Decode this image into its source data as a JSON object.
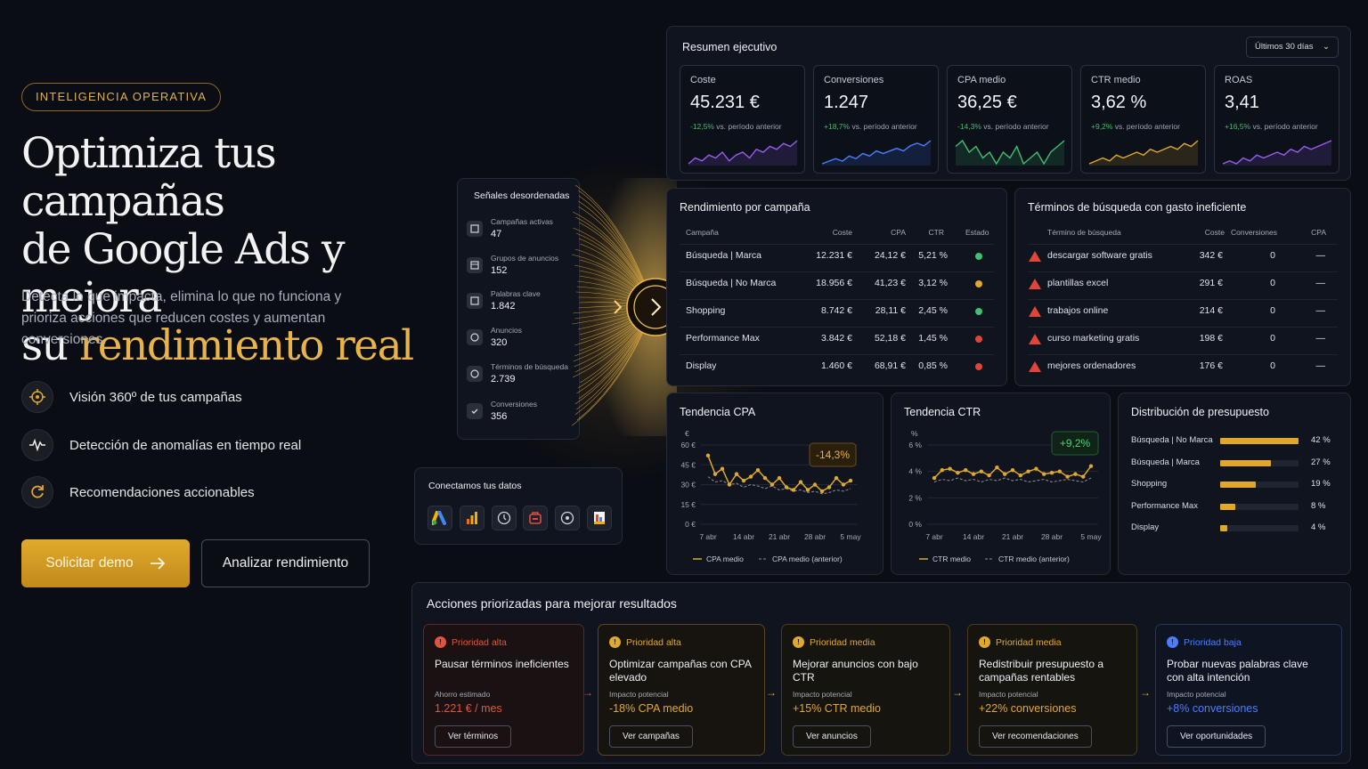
{
  "hero": {
    "badge": "INTELIGENCIA OPERATIVA",
    "title_line1": "Optimiza tus campañas",
    "title_line2": "de Google Ads y mejora",
    "title_line3_pre": "su ",
    "title_line3_accent": "rendimiento real",
    "lead": "Detecta lo que impacta, elimina lo que no funciona y prioriza acciones que reducen costes y aumentan conversiones.",
    "features": [
      {
        "icon": "target-icon",
        "label": "Visión 360º de tus campañas"
      },
      {
        "icon": "pulse-icon",
        "label": "Detección de anomalías en tiempo real"
      },
      {
        "icon": "refresh-icon",
        "label": "Recomendaciones accionables"
      }
    ],
    "cta_primary": "Solicitar demo",
    "cta_secondary": "Analizar rendimiento"
  },
  "signals": {
    "title": "Señales desordenadas",
    "items": [
      {
        "label": "Campañas activas",
        "value": "47"
      },
      {
        "label": "Grupos de anuncios",
        "value": "152"
      },
      {
        "label": "Palabras clave",
        "value": "1.842"
      },
      {
        "label": "Anuncios",
        "value": "320"
      },
      {
        "label": "Términos de búsqueda",
        "value": "2.739"
      },
      {
        "label": "Conversiones",
        "value": "356"
      }
    ]
  },
  "connect": {
    "title": "Conectamos tus datos",
    "icons": [
      "google-ads-icon",
      "analytics-icon",
      "clock-icon",
      "store-icon",
      "target-icon",
      "data-studio-icon"
    ]
  },
  "summary": {
    "title": "Resumen ejecutivo",
    "period": "Últimos 30 días",
    "kpis": [
      {
        "label": "Coste",
        "value": "45.231 €",
        "delta": "-12,5%",
        "delta_text": " vs. período anterior",
        "color": "#9b5cf0",
        "trend": [
          5,
          7,
          6,
          8,
          7,
          9,
          6,
          8,
          9,
          7,
          10,
          9,
          11,
          10,
          12,
          11,
          13
        ]
      },
      {
        "label": "Conversiones",
        "value": "1.247",
        "delta": "+18,7%",
        "delta_text": " vs. período anterior",
        "color": "#4a7dff",
        "trend": [
          4,
          5,
          6,
          5,
          7,
          6,
          8,
          7,
          9,
          8,
          9,
          10,
          9,
          11,
          12,
          11,
          13
        ]
      },
      {
        "label": "CPA medio",
        "value": "36,25 €",
        "delta": "-14,3%",
        "delta_text": " vs. período anterior",
        "color": "#3fbf6f",
        "trend": [
          10,
          11,
          9,
          10,
          8,
          9,
          7,
          9,
          8,
          10,
          7,
          8,
          9,
          7,
          9,
          10,
          11
        ]
      },
      {
        "label": "CTR medio",
        "value": "3,62 %",
        "delta": "+9,2%",
        "delta_text": " vs. período anterior",
        "color": "#e0a92c",
        "trend": [
          4,
          5,
          6,
          5,
          7,
          6,
          7,
          8,
          7,
          9,
          8,
          9,
          10,
          9,
          11,
          10,
          12
        ]
      },
      {
        "label": "ROAS",
        "value": "3,41",
        "delta": "+16,5%",
        "delta_text": " vs. período anterior",
        "color": "#9b5cf0",
        "trend": [
          5,
          6,
          5,
          7,
          6,
          8,
          7,
          8,
          9,
          8,
          10,
          9,
          11,
          10,
          11,
          12,
          13
        ]
      }
    ]
  },
  "campaigns": {
    "title": "Rendimiento por campaña",
    "headers": [
      "Campaña",
      "Coste",
      "CPA",
      "CTR",
      "Estado"
    ],
    "rows": [
      {
        "name": "Búsqueda | Marca",
        "cost": "12.231 €",
        "cpa": "24,12 €",
        "ctr": "5,21 %",
        "status": "#3fbf6f"
      },
      {
        "name": "Búsqueda | No Marca",
        "cost": "18.956 €",
        "cpa": "41,23 €",
        "ctr": "3,12 %",
        "status": "#e0a92c"
      },
      {
        "name": "Shopping",
        "cost": "8.742 €",
        "cpa": "28,11 €",
        "ctr": "2,45 %",
        "status": "#3fbf6f"
      },
      {
        "name": "Performance Max",
        "cost": "3.842 €",
        "cpa": "52,18 €",
        "ctr": "1,45 %",
        "status": "#e0453a"
      },
      {
        "name": "Display",
        "cost": "1.460 €",
        "cpa": "68,91 €",
        "ctr": "0,85 %",
        "status": "#e0453a"
      }
    ]
  },
  "terms": {
    "title": "Términos de búsqueda con gasto ineficiente",
    "headers": [
      "Término de búsqueda",
      "Coste",
      "Conversiones",
      "CPA"
    ],
    "rows": [
      {
        "term": "descargar software gratis",
        "cost": "342 €",
        "conv": "0",
        "cpa": "—"
      },
      {
        "term": "plantillas excel",
        "cost": "291 €",
        "conv": "0",
        "cpa": "—"
      },
      {
        "term": "trabajos online",
        "cost": "214 €",
        "conv": "0",
        "cpa": "—"
      },
      {
        "term": "curso marketing gratis",
        "cost": "198 €",
        "conv": "0",
        "cpa": "—"
      },
      {
        "term": "mejores ordenadores",
        "cost": "176 €",
        "conv": "0",
        "cpa": "—"
      }
    ]
  },
  "chart_data": [
    {
      "type": "line",
      "title": "Tendencia CPA",
      "ylabel": "€",
      "yticks": [
        "60 €",
        "45 €",
        "30 €",
        "15 €",
        "0 €"
      ],
      "ylim": [
        0,
        60
      ],
      "xticks": [
        "7 abr",
        "14 abr",
        "21 abr",
        "28 abr",
        "5 may"
      ],
      "badge": "-14,3%",
      "series": [
        {
          "name": "CPA medio",
          "style": "solid",
          "color": "#e0a92c",
          "values": [
            52,
            38,
            42,
            30,
            38,
            33,
            36,
            41,
            35,
            30,
            35,
            28,
            26,
            32,
            26,
            30,
            25,
            28,
            35,
            30,
            33
          ]
        },
        {
          "name": "CPA medio (anterior)",
          "style": "dashed",
          "color": "#8c909a",
          "values": [
            36,
            32,
            33,
            30,
            31,
            28,
            30,
            29,
            27,
            29,
            26,
            27,
            25,
            26,
            24,
            25,
            23,
            24,
            26,
            25,
            27
          ]
        }
      ]
    },
    {
      "type": "line",
      "title": "Tendencia CTR",
      "ylabel": "%",
      "yticks": [
        "6 %",
        "4 %",
        "2 %",
        "0 %"
      ],
      "ylim": [
        0,
        6
      ],
      "xticks": [
        "7 abr",
        "14 abr",
        "21 abr",
        "28 abr",
        "5 may"
      ],
      "badge": "+9,2%",
      "series": [
        {
          "name": "CTR medio",
          "style": "solid",
          "color": "#e0a92c",
          "values": [
            3.5,
            4.1,
            4.2,
            3.9,
            4.1,
            3.8,
            4.0,
            3.7,
            4.3,
            3.8,
            4.1,
            3.7,
            4.0,
            4.2,
            3.8,
            3.9,
            4.0,
            3.6,
            3.8,
            3.6,
            4.4
          ]
        },
        {
          "name": "CTR medio (anterior)",
          "style": "dashed",
          "color": "#8c909a",
          "values": [
            3.2,
            3.4,
            3.3,
            3.5,
            3.3,
            3.4,
            3.2,
            3.4,
            3.3,
            3.5,
            3.3,
            3.4,
            3.2,
            3.3,
            3.4,
            3.2,
            3.3,
            3.4,
            3.3,
            3.2,
            3.5
          ]
        }
      ]
    },
    {
      "type": "bar",
      "title": "Distribución de presupuesto",
      "categories": [
        "Búsqueda | No Marca",
        "Búsqueda | Marca",
        "Shopping",
        "Performance Max",
        "Display"
      ],
      "values": [
        42,
        27,
        19,
        8,
        4
      ],
      "labels": [
        "42 %",
        "27 %",
        "19 %",
        "8 %",
        "4 %"
      ]
    }
  ],
  "actions": {
    "title": "Acciones priorizadas para mejorar resultados",
    "cards": [
      {
        "priority": "Prioridad alta",
        "color": "#e0553f",
        "bg": "#1a1113",
        "border": "#5a2a28",
        "title": "Pausar términos ineficientes",
        "sub": "Ahorro estimado",
        "value": "1.221 € / mes",
        "button": "Ver términos"
      },
      {
        "priority": "Prioridad alta",
        "color": "#e0a92c",
        "bg": "#17140f",
        "border": "#5a4620",
        "title": "Optimizar campañas con CPA elevado",
        "sub": "Impacto potencial",
        "value": "-18% CPA medio",
        "button": "Ver campañas"
      },
      {
        "priority": "Prioridad media",
        "color": "#e0a92c",
        "bg": "#16140f",
        "border": "#4a3c20",
        "title": "Mejorar anuncios con bajo CTR",
        "sub": "Impacto potencial",
        "value": "+15% CTR medio",
        "button": "Ver anuncios"
      },
      {
        "priority": "Prioridad media",
        "color": "#e0a92c",
        "bg": "#16140f",
        "border": "#4a3c20",
        "title": "Redistribuir presupuesto a campañas rentables",
        "sub": "Impacto potencial",
        "value": "+22% conversiones",
        "button": "Ver recomendaciones"
      },
      {
        "priority": "Prioridad baja",
        "color": "#4a7dff",
        "bg": "#0e1422",
        "border": "#24365a",
        "title": "Probar nuevas palabras clave con alta intención",
        "sub": "Impacto potencial",
        "value": "+8% conversiones",
        "button": "Ver oportunidades"
      }
    ]
  }
}
